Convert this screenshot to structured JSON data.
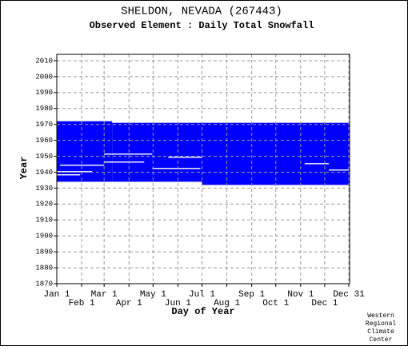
{
  "chart_data": {
    "type": "range",
    "title": "SHELDON, NEVADA   (267443)",
    "subtitle": "Observed Element : Daily Total Snowfall",
    "x_label": "Day of Year",
    "y_label": "Year",
    "credit": [
      "Western",
      "Regional",
      "Climate",
      "Center"
    ],
    "color": "#0000ff",
    "gap_color": "#ffffff",
    "grid": true,
    "xlim": [
      1,
      366
    ],
    "xticks": [
      {
        "value": 1,
        "label": "Jan 1"
      },
      {
        "value": 32,
        "label": "Feb 1"
      },
      {
        "value": 60,
        "label": "Mar 1"
      },
      {
        "value": 91,
        "label": "Apr 1"
      },
      {
        "value": 121,
        "label": "May 1"
      },
      {
        "value": 152,
        "label": "Jun 1"
      },
      {
        "value": 182,
        "label": "Jul 1"
      },
      {
        "value": 213,
        "label": "Aug 1"
      },
      {
        "value": 244,
        "label": "Sep 1"
      },
      {
        "value": 274,
        "label": "Oct 1"
      },
      {
        "value": 305,
        "label": "Nov 1"
      },
      {
        "value": 335,
        "label": "Dec 1"
      },
      {
        "value": 365,
        "label": "Dec 31"
      }
    ],
    "ylim": [
      1870,
      2014
    ],
    "yticks": [
      1870,
      1880,
      1890,
      1900,
      1910,
      1920,
      1930,
      1940,
      1950,
      1960,
      1970,
      1980,
      1990,
      2000,
      2010
    ],
    "ranges": [
      {
        "x": [
          1,
          70
        ],
        "y": [
          1934,
          1972
        ]
      },
      {
        "x": [
          70,
          182
        ],
        "y": [
          1934,
          1971
        ]
      },
      {
        "x": [
          182,
          366
        ],
        "y": [
          1932,
          1971
        ]
      }
    ],
    "gaps": [
      {
        "x": [
          1,
          30
        ],
        "y": [
          1938,
          1938.7
        ]
      },
      {
        "x": [
          1,
          45
        ],
        "y": [
          1940,
          1940.7
        ]
      },
      {
        "x": [
          5,
          60
        ],
        "y": [
          1944,
          1944.7
        ]
      },
      {
        "x": [
          60,
          110
        ],
        "y": [
          1946,
          1946.7
        ]
      },
      {
        "x": [
          60,
          120
        ],
        "y": [
          1951,
          1951.7
        ]
      },
      {
        "x": [
          140,
          182
        ],
        "y": [
          1949,
          1949.7
        ]
      },
      {
        "x": [
          120,
          180
        ],
        "y": [
          1942,
          1942.7
        ]
      },
      {
        "x": [
          340,
          365
        ],
        "y": [
          1941,
          1941.7
        ]
      },
      {
        "x": [
          310,
          340
        ],
        "y": [
          1945,
          1945.7
        ]
      }
    ]
  }
}
